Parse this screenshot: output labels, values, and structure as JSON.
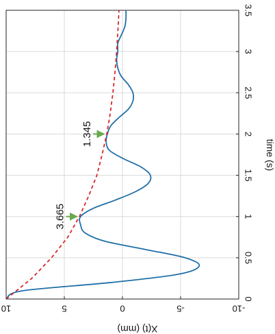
{
  "chart_data": {
    "type": "line",
    "orientation": "rotated-90-clockwise",
    "title": "",
    "xlabel": "time (s)",
    "ylabel": "X(t) (mm)",
    "xlim": [
      0,
      3.5
    ],
    "ylim": [
      -10,
      10
    ],
    "x_ticks": [
      "0",
      "0.5",
      "1",
      "1.5",
      "2",
      "2.5",
      "3",
      "3.5"
    ],
    "y_ticks": [
      "10",
      "5",
      "0",
      "-5",
      "-10"
    ],
    "grid": true,
    "legend": "none",
    "series": [
      {
        "style": "solid",
        "color": "#1f6fa8",
        "x": [
          0,
          0.1,
          0.2,
          0.3,
          0.4,
          0.5,
          0.6,
          0.7,
          0.8,
          0.9,
          1.0,
          1.1,
          1.2,
          1.3,
          1.4,
          1.5,
          1.6,
          1.7,
          1.8,
          1.9,
          2.0,
          2.1,
          2.2,
          2.3,
          2.4,
          2.5,
          2.6,
          2.7,
          2.8,
          2.9,
          3.0,
          3.1,
          3.2,
          3.3,
          3.4,
          3.5
        ],
        "y": [
          10,
          8.6,
          1.0,
          -4.8,
          -6.6,
          -5.4,
          -2.0,
          1.5,
          3.2,
          3.6,
          3.6,
          2.5,
          0.6,
          -1.1,
          -2.2,
          -2.4,
          -1.6,
          -0.1,
          1.1,
          1.4,
          1.3,
          1.0,
          0.3,
          -0.5,
          -0.9,
          -0.9,
          -0.5,
          0.1,
          0.4,
          0.5,
          0.4,
          0.4,
          0.1,
          -0.2,
          -0.3,
          -0.3
        ]
      },
      {
        "style": "dashed",
        "color": "#d62828",
        "x": [
          0,
          0.25,
          0.5,
          0.75,
          1.0,
          1.25,
          1.5,
          1.75,
          2.0,
          2.25,
          2.5,
          2.75,
          3.0,
          3.25,
          3.5
        ],
        "y": [
          10,
          7.8,
          6.1,
          4.7,
          3.7,
          2.9,
          2.2,
          1.75,
          1.35,
          1.05,
          0.82,
          0.64,
          0.5,
          0.39,
          0.3
        ]
      }
    ],
    "annotations": [
      {
        "text": "3.665",
        "x": 1.0,
        "y": 3.665,
        "arrow_color": "#6aa84f"
      },
      {
        "text": "1.345",
        "x": 2.0,
        "y": 1.345,
        "arrow_color": "#6aa84f"
      }
    ]
  }
}
